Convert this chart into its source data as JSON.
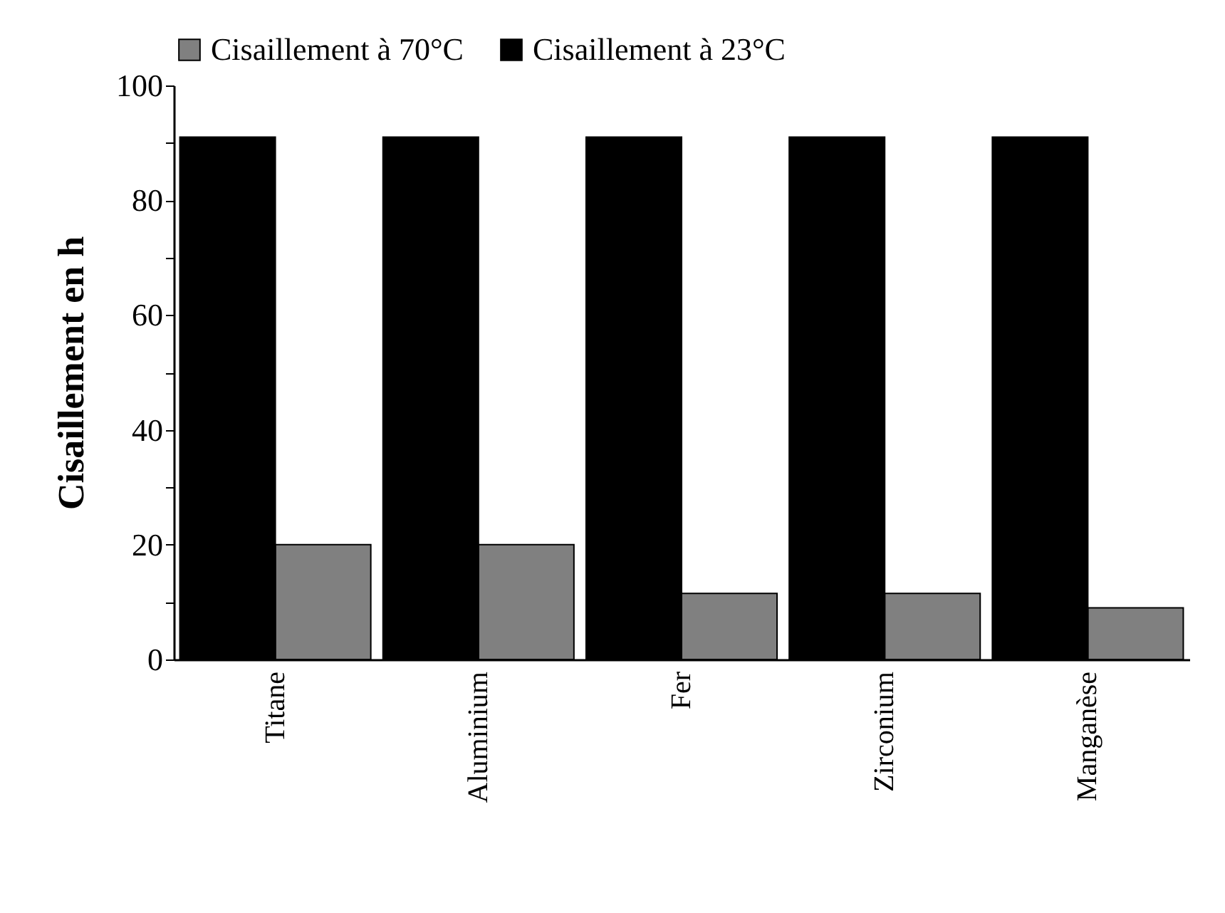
{
  "chart_data": {
    "type": "bar",
    "ylabel": "Cisaillement  en  h",
    "categories": [
      "Titane",
      "Aluminium",
      "Fer",
      "Zirconium",
      "Manganèse"
    ],
    "series": [
      {
        "name": "Cisaillement à 70°C",
        "color": "#808080",
        "values": [
          20,
          20,
          11.5,
          11.5,
          9
        ]
      },
      {
        "name": "Cisaillement à 23°C",
        "color": "#000000",
        "values": [
          91,
          91,
          91,
          91,
          91
        ]
      }
    ],
    "ylim": [
      0,
      100
    ],
    "yticks": [
      0,
      {
        "value": 10,
        "label": null
      },
      20,
      {
        "value": 30,
        "label": null
      },
      40,
      {
        "value": 50,
        "label": null
      },
      60,
      {
        "value": 70,
        "label": null
      },
      80,
      {
        "value": 90,
        "label": null
      },
      100
    ],
    "grid": false,
    "legend": "top"
  }
}
